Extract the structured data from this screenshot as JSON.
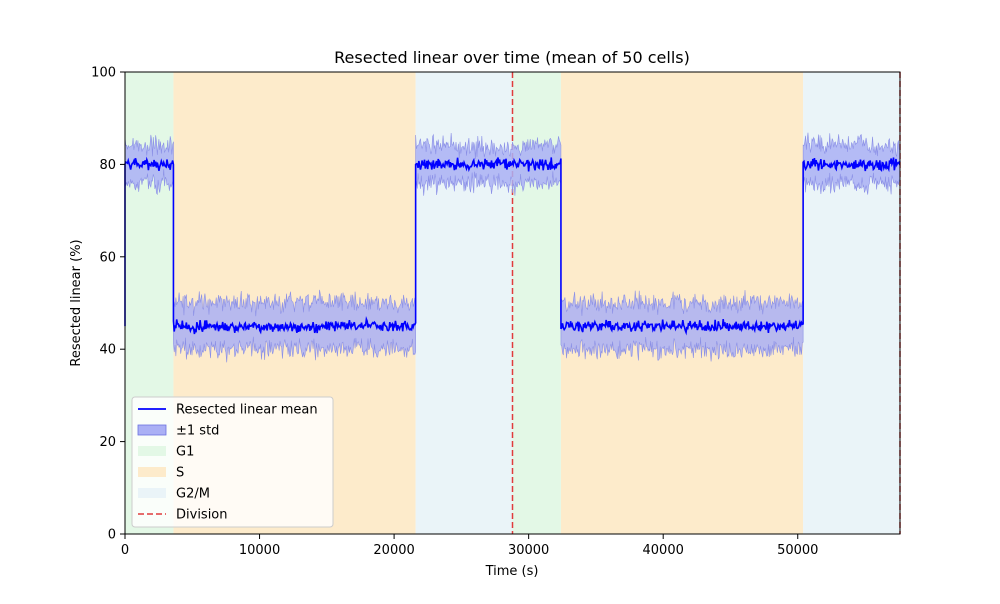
{
  "chart_data": {
    "type": "line",
    "title": "Resected linear over time (mean of 50 cells)",
    "xlabel": "Time (s)",
    "ylabel": "Resected linear (%)",
    "xlim": [
      0,
      57600
    ],
    "ylim": [
      0,
      100
    ],
    "x_ticks": [
      0,
      10000,
      20000,
      30000,
      40000,
      50000
    ],
    "x_tick_labels": [
      "0",
      "10000",
      "20000",
      "30000",
      "40000",
      "50000"
    ],
    "y_ticks": [
      0,
      20,
      40,
      60,
      80,
      100
    ],
    "y_tick_labels": [
      "0",
      "20",
      "40",
      "60",
      "80",
      "100"
    ],
    "grid": false,
    "legend_position": "lower-left",
    "phases": [
      {
        "phase": "G1",
        "start": 0,
        "end": 3600
      },
      {
        "phase": "S",
        "start": 3600,
        "end": 21600
      },
      {
        "phase": "G2/M",
        "start": 21600,
        "end": 28800
      },
      {
        "phase": "G1",
        "start": 28800,
        "end": 32400
      },
      {
        "phase": "S",
        "start": 32400,
        "end": 50400
      },
      {
        "phase": "G2/M",
        "start": 50400,
        "end": 57600
      }
    ],
    "divisions": [
      28800,
      57600
    ],
    "series": [
      {
        "name": "Resected linear mean",
        "std_name": "±1 std",
        "segments": [
          {
            "x_start": 0,
            "x_end": 3600,
            "mean": 80,
            "std": 4
          },
          {
            "x_start": 3600,
            "x_end": 21600,
            "mean": 45,
            "std": 5
          },
          {
            "x_start": 21600,
            "x_end": 32400,
            "mean": 80,
            "std": 4
          },
          {
            "x_start": 32400,
            "x_end": 50400,
            "mean": 45,
            "std": 5
          },
          {
            "x_start": 50400,
            "x_end": 57600,
            "mean": 80,
            "std": 4
          }
        ]
      }
    ],
    "legend": [
      {
        "label": "Resected linear mean",
        "kind": "line",
        "color": "#0000ff"
      },
      {
        "label": "±1 std",
        "kind": "patch",
        "color": "#aab0f5"
      },
      {
        "label": "G1",
        "kind": "patch",
        "color": "#e3f8e6"
      },
      {
        "label": "S",
        "kind": "patch",
        "color": "#fdebcb"
      },
      {
        "label": "G2/M",
        "kind": "patch",
        "color": "#eaf4f8"
      },
      {
        "label": "Division",
        "kind": "dashed",
        "color": "#e03c3c"
      }
    ],
    "colors": {
      "mean": "#0000ff",
      "std_fill": "#aab0f5",
      "std_edge": "#8a8fe6",
      "G1": "#e3f8e6",
      "S": "#fdebcb",
      "G2/M": "#eaf4f8",
      "division": "#e03c3c"
    }
  }
}
